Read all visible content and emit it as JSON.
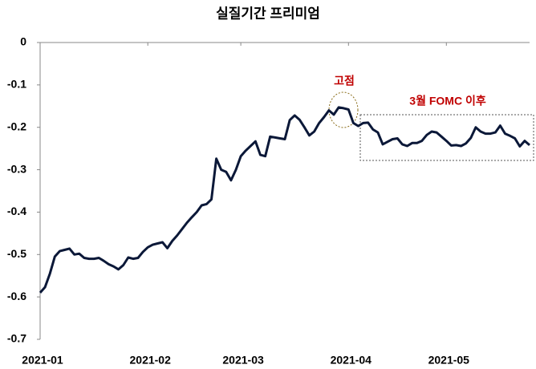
{
  "chart_data": {
    "type": "line",
    "title": "실질기간 프리미엄",
    "categories": [
      "2021-01",
      null,
      null,
      null,
      null,
      null,
      null,
      null,
      null,
      null,
      null,
      null,
      null,
      null,
      null,
      null,
      null,
      null,
      null,
      null,
      null,
      null,
      "2021-02",
      null,
      null,
      null,
      null,
      null,
      null,
      null,
      null,
      null,
      null,
      null,
      null,
      null,
      null,
      null,
      null,
      null,
      null,
      "2021-03",
      null,
      null,
      null,
      null,
      null,
      null,
      null,
      null,
      null,
      null,
      null,
      null,
      null,
      null,
      null,
      null,
      null,
      null,
      null,
      null,
      null,
      "2021-04",
      null,
      null,
      null,
      null,
      null,
      null,
      null,
      null,
      null,
      null,
      null,
      null,
      null,
      null,
      null,
      null,
      null,
      null,
      null,
      "2021-05",
      null,
      null,
      null,
      null,
      null,
      null,
      null,
      null,
      null,
      null,
      null,
      null,
      null,
      null,
      null,
      null,
      null
    ],
    "series": [
      {
        "color": "#0b1838",
        "values": [
          -0.59,
          -0.577,
          -0.545,
          -0.505,
          -0.492,
          -0.489,
          -0.486,
          -0.5,
          -0.498,
          -0.508,
          -0.51,
          -0.51,
          -0.508,
          -0.515,
          -0.523,
          -0.528,
          -0.535,
          -0.525,
          -0.507,
          -0.51,
          -0.508,
          -0.494,
          -0.483,
          -0.477,
          -0.474,
          -0.471,
          -0.485,
          -0.468,
          -0.455,
          -0.44,
          -0.425,
          -0.412,
          -0.4,
          -0.384,
          -0.381,
          -0.37,
          -0.274,
          -0.3,
          -0.305,
          -0.325,
          -0.3,
          -0.268,
          -0.255,
          -0.244,
          -0.233,
          -0.265,
          -0.268,
          -0.222,
          -0.224,
          -0.226,
          -0.228,
          -0.183,
          -0.172,
          -0.182,
          -0.2,
          -0.219,
          -0.21,
          -0.19,
          -0.176,
          -0.16,
          -0.17,
          -0.153,
          -0.155,
          -0.158,
          -0.19,
          -0.197,
          -0.19,
          -0.189,
          -0.205,
          -0.212,
          -0.24,
          -0.234,
          -0.228,
          -0.226,
          -0.24,
          -0.244,
          -0.237,
          -0.237,
          -0.232,
          -0.218,
          -0.21,
          -0.212,
          -0.222,
          -0.232,
          -0.243,
          -0.242,
          -0.244,
          -0.238,
          -0.225,
          -0.2,
          -0.21,
          -0.215,
          -0.215,
          -0.212,
          -0.196,
          -0.215,
          -0.22,
          -0.226,
          -0.245,
          -0.232,
          -0.242
        ]
      }
    ],
    "ylim": [
      -0.7,
      0
    ],
    "yticks": [
      0,
      -0.1,
      -0.2,
      -0.3,
      -0.4,
      -0.5,
      -0.6,
      -0.7
    ],
    "annotations": [
      "고점",
      "3월 FOMC 이후"
    ]
  }
}
